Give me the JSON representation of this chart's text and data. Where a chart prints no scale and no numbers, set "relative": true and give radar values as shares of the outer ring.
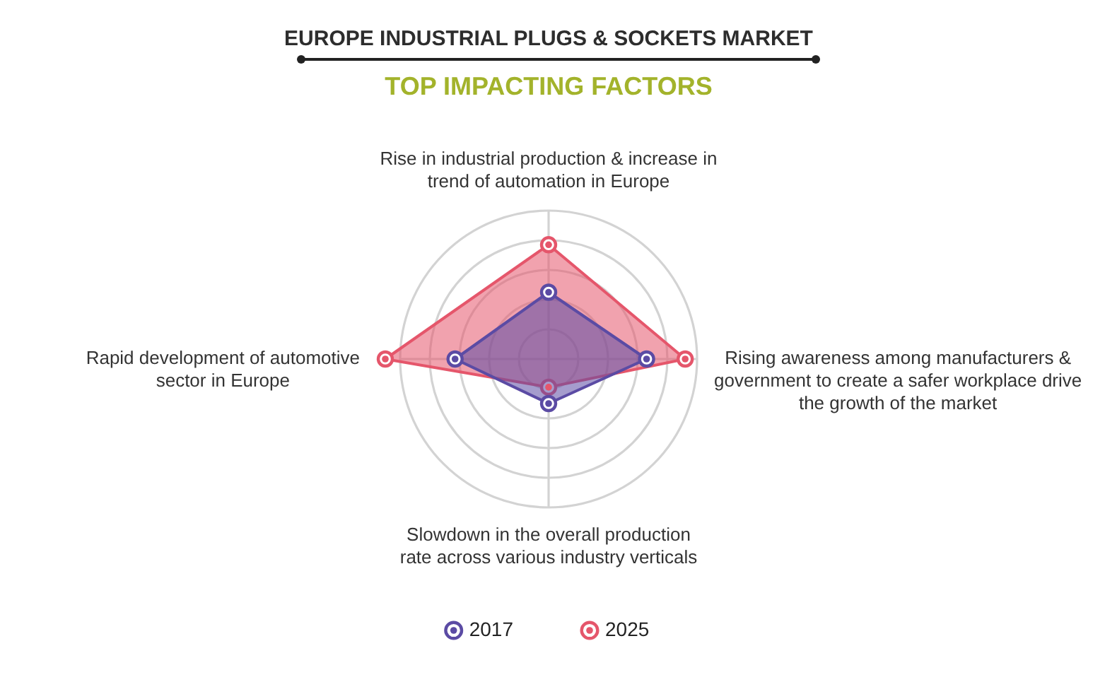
{
  "chart_data": {
    "type": "radar",
    "title": "EUROPE INDUSTRIAL PLUGS & SOCKETS MARKET",
    "subtitle": "TOP IMPACTING FACTORS",
    "categories": [
      "Rise in industrial production & increase in\ntrend of automation in Europe",
      "Rising awareness among manufacturers &\ngovernment to create a safer workplace drive\nthe growth of the market",
      "Slowdown in the overall production\nrate across various industry verticals",
      "Rapid development of automotive\nsector in Europe"
    ],
    "relative": true,
    "series": [
      {
        "name": "2017",
        "color": "#5b4ba4",
        "values": [
          0.45,
          0.66,
          0.3,
          0.63
        ]
      },
      {
        "name": "2025",
        "color": "#e5566b",
        "values": [
          0.77,
          0.92,
          0.19,
          1.1
        ]
      }
    ],
    "legend": "bottom",
    "marker": "circle",
    "grid": true
  }
}
